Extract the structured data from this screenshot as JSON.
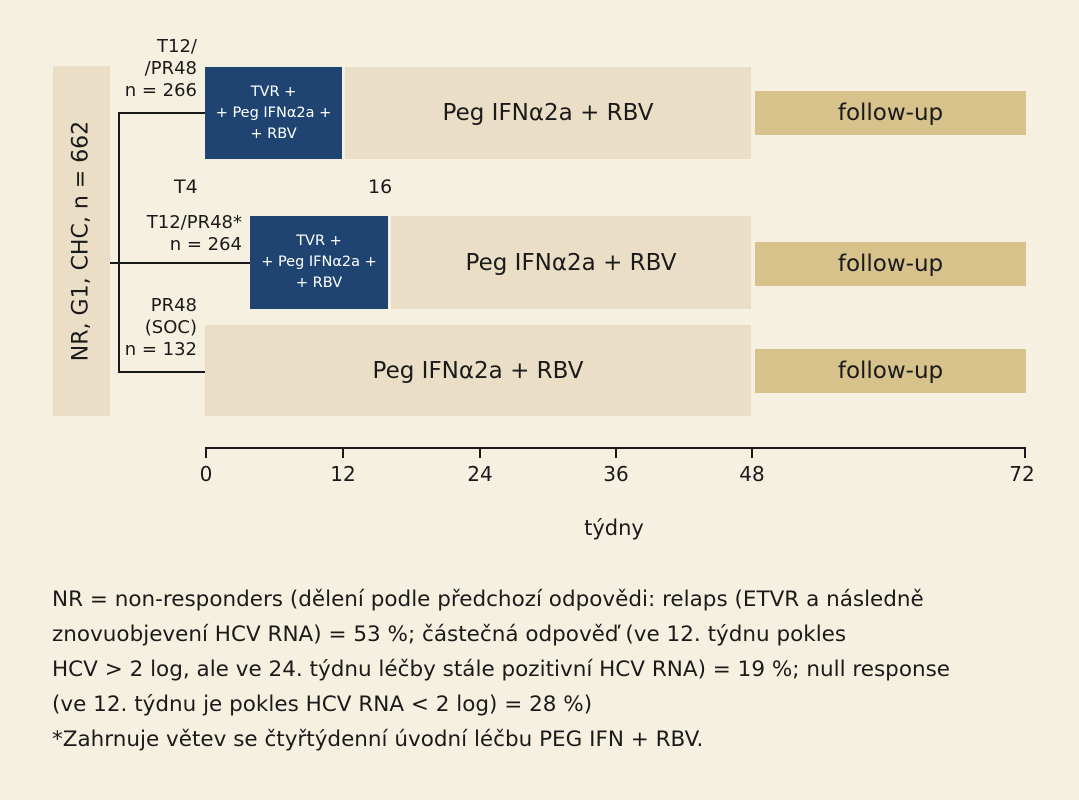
{
  "population_label": "NR, G1, CHC, n = 662",
  "arms": [
    {
      "label_lines": [
        "T12/",
        "/PR48",
        "n = 266"
      ]
    },
    {
      "label_lines": [
        "T12/PR48*",
        "n = 264"
      ]
    },
    {
      "label_lines": [
        "PR48",
        "(SOC)",
        "n = 132"
      ]
    }
  ],
  "phases": {
    "tvr_lines": [
      "TVR +",
      "+ Peg IFNα2a +",
      "+ RBV"
    ],
    "peg": "Peg IFNα2a + RBV",
    "followup": "follow-up"
  },
  "markers": {
    "t4": "T4",
    "w16": "16"
  },
  "axis": {
    "label": "týdny",
    "ticks": [
      "0",
      "12",
      "24",
      "36",
      "48",
      "72"
    ]
  },
  "caption": {
    "line1": "NR = non-responders (dělení podle předchozí odpovědi: relaps (ETVR a následně",
    "line2": "znovuobjevení HCV RNA) = 53 %; částečná odpověď (ve 12. týdnu pokles",
    "line3": "HCV > 2 log, ale ve 24. týdnu léčby stále pozitivní HCV RNA) = 19 %; null response",
    "line4": "(ve 12. týdnu je pokles HCV RNA < 2 log) = 28 %)",
    "line5": "*Zahrnuje větev se čtyřtýdenní úvodní léčbu PEG IFN + RBV."
  },
  "colors": {
    "background": "#f6f0e1",
    "treatment": "#1f4472",
    "peg_phase": "#eadfc6",
    "followup": "#d7c28b"
  }
}
